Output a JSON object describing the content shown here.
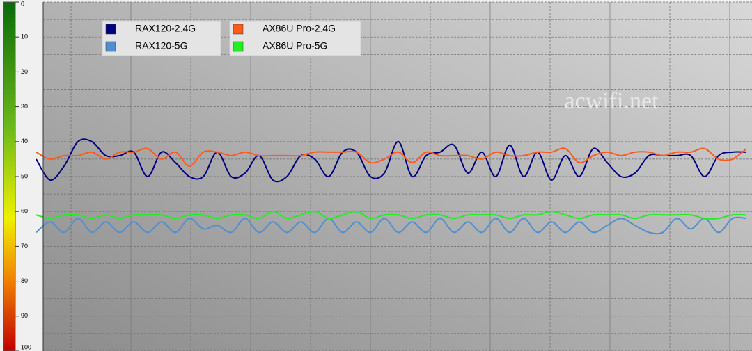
{
  "chart_data": {
    "type": "line",
    "watermark": "acwifi.net",
    "ylim": [
      0,
      100
    ],
    "inverted": true,
    "yticks": [
      0,
      10,
      20,
      30,
      40,
      50,
      60,
      70,
      80,
      90,
      100
    ],
    "grid": true,
    "series": [
      {
        "name": "RAX120-2.4G",
        "color": "#00007f",
        "values": [
          45,
          51,
          47,
          40,
          40,
          44,
          44,
          43,
          50,
          43,
          46,
          50,
          50,
          43,
          50,
          49,
          44,
          51,
          50,
          44,
          45,
          50,
          43,
          43,
          50,
          49,
          40,
          50,
          44,
          43,
          41,
          49,
          43,
          50,
          41,
          50,
          43,
          51,
          44,
          50,
          42,
          46,
          50,
          49,
          44,
          44,
          44,
          44,
          50,
          44,
          43,
          43
        ]
      },
      {
        "name": "RAX120-5G",
        "color": "#4f8fcf",
        "values": [
          66,
          63,
          66,
          62,
          66,
          63,
          66,
          63,
          66,
          63,
          66,
          62,
          65,
          64,
          66,
          62,
          66,
          63,
          66,
          63,
          66,
          62,
          66,
          63,
          66,
          62,
          66,
          63,
          66,
          62,
          66,
          63,
          66,
          62,
          66,
          62,
          66,
          63,
          66,
          63,
          66,
          64,
          62,
          64,
          66,
          66,
          62,
          65,
          62,
          66,
          62,
          62
        ]
      },
      {
        "name": "AX86U Pro-2.4G",
        "color": "#ff5a1e",
        "values": [
          43,
          45,
          44,
          44,
          43,
          45,
          43,
          43,
          42,
          45,
          43,
          47,
          43,
          43,
          44,
          43,
          44,
          44,
          44,
          44,
          43,
          43,
          43,
          43,
          46,
          45,
          43,
          46,
          43,
          44,
          44,
          44,
          45,
          43,
          44,
          44,
          43,
          43,
          42,
          46,
          44,
          43,
          44,
          43,
          43,
          44,
          43,
          43,
          42,
          45,
          45,
          42
        ]
      },
      {
        "name": "AX86U Pro-5G",
        "color": "#22ee22",
        "values": [
          61,
          62,
          61,
          61,
          62,
          61,
          62,
          61,
          61,
          61,
          62,
          61,
          61,
          62,
          61,
          61,
          62,
          60,
          62,
          61,
          60,
          62,
          61,
          60,
          62,
          61,
          61,
          62,
          61,
          61,
          62,
          61,
          61,
          61,
          62,
          61,
          61,
          60,
          61,
          62,
          61,
          61,
          61,
          62,
          61,
          61,
          61,
          61,
          62,
          62,
          61,
          61
        ]
      }
    ]
  }
}
